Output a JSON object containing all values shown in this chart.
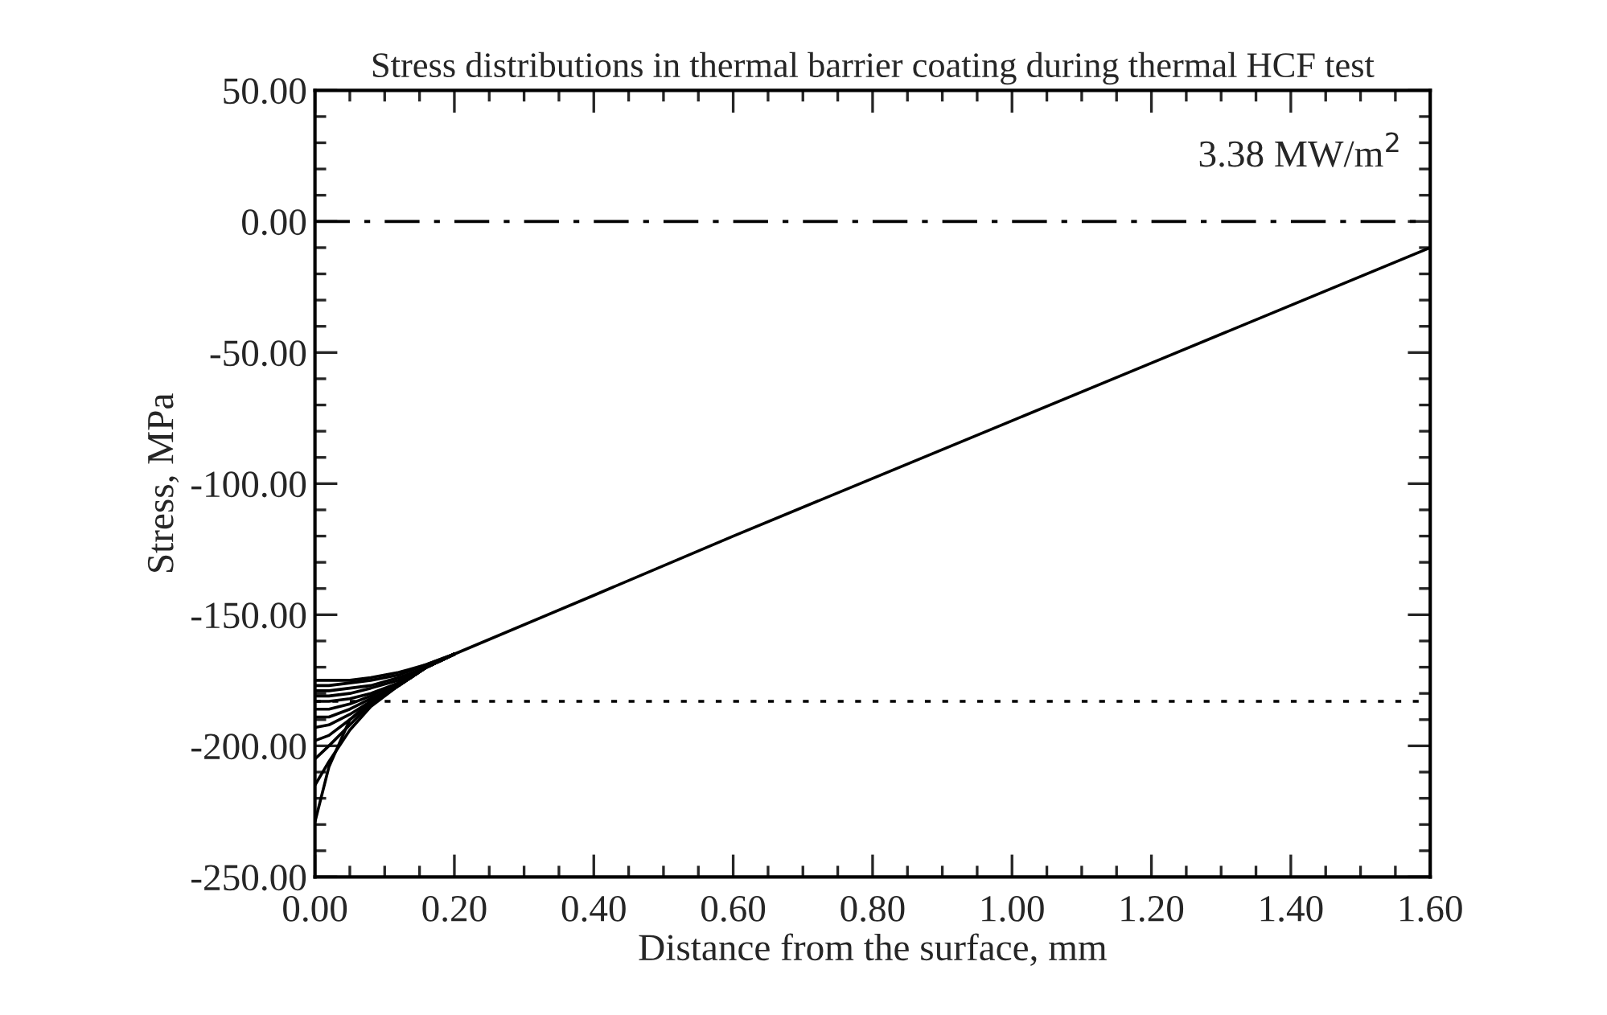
{
  "chart_data": {
    "type": "line",
    "title": "Stress distributions in thermal barrier coating during thermal HCF test",
    "xlabel": "Distance from the surface, mm",
    "ylabel": "Stress, MPa",
    "xlim": [
      0,
      1.6
    ],
    "ylim": [
      -250,
      50
    ],
    "xticks": [
      {
        "value": 0,
        "label": "0.00"
      },
      {
        "value": 0.2,
        "label": "0.20"
      },
      {
        "value": 0.4,
        "label": "0.40"
      },
      {
        "value": 0.6,
        "label": "0.60"
      },
      {
        "value": 0.8,
        "label": "0.80"
      },
      {
        "value": 1.0,
        "label": "1.00"
      },
      {
        "value": 1.2,
        "label": "1.20"
      },
      {
        "value": 1.4,
        "label": "1.40"
      },
      {
        "value": 1.6,
        "label": "1.60"
      }
    ],
    "yticks": [
      {
        "value": 50,
        "label": "50.00"
      },
      {
        "value": 0,
        "label": "0.00"
      },
      {
        "value": -50,
        "label": "-50.00"
      },
      {
        "value": -100,
        "label": "-100.00"
      },
      {
        "value": -150,
        "label": "-150.00"
      },
      {
        "value": -200,
        "label": "-200.00"
      },
      {
        "value": -250,
        "label": "-250.00"
      }
    ],
    "grid": false,
    "legend": false,
    "marker": "none",
    "line_style": "solid",
    "annotations": [
      "3.38 MW/m$^{2}$"
    ],
    "ref_lines": [
      {
        "axis": "y",
        "value": 0,
        "color": "#000000",
        "line_style": "dashdot"
      },
      {
        "axis": "y",
        "value": -183,
        "color": "#000000",
        "line_style": "dotted"
      }
    ],
    "series": [
      {
        "color": "#000000",
        "x": [
          0,
          0.02,
          0.05,
          0.08,
          0.12,
          0.16,
          0.2,
          0.4,
          0.6,
          0.8,
          1.0,
          1.2,
          1.4,
          1.6
        ],
        "values": [
          -175,
          -175,
          -175,
          -174,
          -172,
          -169,
          -165,
          -142.6,
          -120,
          -98,
          -76,
          -54,
          -32,
          -10
        ]
      },
      {
        "color": "#000000",
        "x": [
          0,
          0.02,
          0.05,
          0.08,
          0.12,
          0.16,
          0.2
        ],
        "values": [
          -177,
          -177,
          -176,
          -175,
          -173,
          -169,
          -165
        ]
      },
      {
        "color": "#000000",
        "x": [
          0,
          0.02,
          0.05,
          0.08,
          0.12,
          0.16,
          0.2
        ],
        "values": [
          -179,
          -179,
          -178,
          -177,
          -174,
          -170,
          -165
        ]
      },
      {
        "color": "#000000",
        "x": [
          0,
          0.02,
          0.05,
          0.08,
          0.12,
          0.16,
          0.2
        ],
        "values": [
          -181,
          -181,
          -180,
          -178,
          -175,
          -170,
          -165
        ]
      },
      {
        "color": "#000000",
        "x": [
          0,
          0.02,
          0.05,
          0.08,
          0.12,
          0.16,
          0.2
        ],
        "values": [
          -183,
          -183,
          -182,
          -180,
          -176,
          -170,
          -165
        ]
      },
      {
        "color": "#000000",
        "x": [
          0,
          0.02,
          0.05,
          0.08,
          0.12,
          0.16,
          0.2
        ],
        "values": [
          -186,
          -186,
          -184,
          -181,
          -176,
          -170,
          -165
        ]
      },
      {
        "color": "#000000",
        "x": [
          0,
          0.02,
          0.05,
          0.08,
          0.12,
          0.16,
          0.2
        ],
        "values": [
          -189,
          -189,
          -186,
          -182,
          -177,
          -170,
          -165
        ]
      },
      {
        "color": "#000000",
        "x": [
          0,
          0.02,
          0.05,
          0.08,
          0.12,
          0.16,
          0.2
        ],
        "values": [
          -193,
          -192,
          -188,
          -183,
          -177,
          -170,
          -165
        ]
      },
      {
        "color": "#000000",
        "x": [
          0,
          0.02,
          0.05,
          0.08,
          0.12,
          0.16,
          0.2
        ],
        "values": [
          -198,
          -196,
          -190,
          -184,
          -177,
          -170,
          -165
        ]
      },
      {
        "color": "#000000",
        "x": [
          0,
          0.02,
          0.05,
          0.08,
          0.12,
          0.16,
          0.2
        ],
        "values": [
          -205,
          -200,
          -192,
          -184,
          -177,
          -170,
          -165
        ]
      },
      {
        "color": "#000000",
        "x": [
          0,
          0.02,
          0.05,
          0.08,
          0.12,
          0.16,
          0.2
        ],
        "values": [
          -215,
          -206,
          -194,
          -185,
          -177,
          -170,
          -165
        ]
      },
      {
        "color": "#000000",
        "x": [
          0,
          0.02,
          0.05,
          0.08,
          0.12,
          0.16,
          0.2
        ],
        "values": [
          -229,
          -208,
          -190,
          -183,
          -177,
          -170,
          -165
        ]
      }
    ]
  }
}
